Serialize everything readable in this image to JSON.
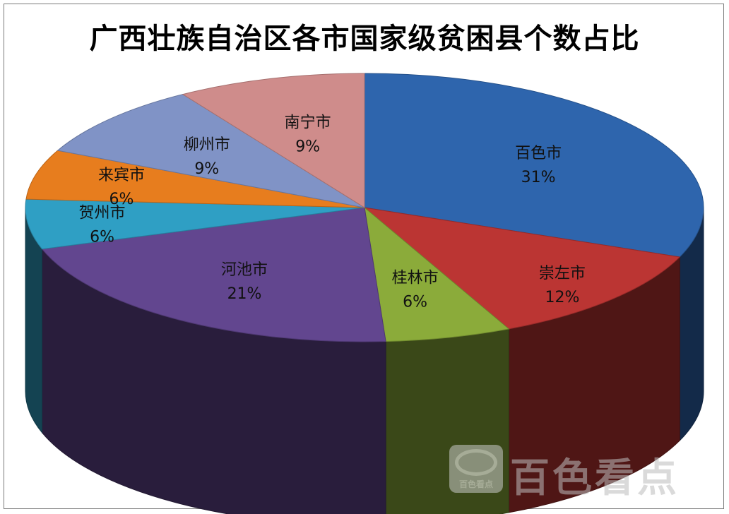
{
  "chart_data": {
    "type": "pie",
    "title": "广西壮族自治区各市国家级贫困县个数占比",
    "slices": [
      {
        "name": "百色市",
        "percent": 31,
        "label": "31%",
        "color": "#2e65ad"
      },
      {
        "name": "崇左市",
        "percent": 12,
        "label": "12%",
        "color": "#bb3533"
      },
      {
        "name": "桂林市",
        "percent": 6,
        "label": "6%",
        "color": "#8bab3a"
      },
      {
        "name": "河池市",
        "percent": 21,
        "label": "21%",
        "color": "#62468f"
      },
      {
        "name": "贺州市",
        "percent": 6,
        "label": "6%",
        "color": "#2f9fc4"
      },
      {
        "name": "来宾市",
        "percent": 6,
        "label": "6%",
        "color": "#e77d1e"
      },
      {
        "name": "柳州市",
        "percent": 9,
        "label": "9%",
        "color": "#8093c6"
      },
      {
        "name": "南宁市",
        "percent": 9,
        "label": "9%",
        "color": "#cf8c8b"
      }
    ],
    "style": "3d"
  },
  "watermark": {
    "logo_text": "百色看点",
    "text": "百色看点"
  }
}
